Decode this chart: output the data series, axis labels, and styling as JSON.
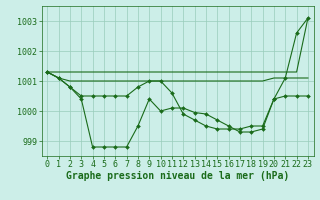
{
  "background_color": "#cceee8",
  "grid_color": "#99ccbb",
  "line_color": "#1a6b1a",
  "marker_color": "#1a6b1a",
  "xlabel": "Graphe pression niveau de la mer (hPa)",
  "xlabel_fontsize": 7,
  "tick_fontsize": 6,
  "ylim": [
    998.5,
    1003.5
  ],
  "xlim": [
    -0.5,
    23.5
  ],
  "yticks": [
    999,
    1000,
    1001,
    1002,
    1003
  ],
  "xticks": [
    0,
    1,
    2,
    3,
    4,
    5,
    6,
    7,
    8,
    9,
    10,
    11,
    12,
    13,
    14,
    15,
    16,
    17,
    18,
    19,
    20,
    21,
    22,
    23
  ],
  "series_straight": [
    1001.3,
    1001.3,
    1001.3,
    1001.3,
    1001.3,
    1001.3,
    1001.3,
    1001.3,
    1001.3,
    1001.3,
    1001.3,
    1001.3,
    1001.3,
    1001.3,
    1001.3,
    1001.3,
    1001.3,
    1001.3,
    1001.3,
    1001.3,
    1001.3,
    1001.3,
    1001.3,
    1003.1
  ],
  "series_flat": [
    1001.3,
    1001.1,
    1001.0,
    1001.0,
    1001.0,
    1001.0,
    1001.0,
    1001.0,
    1001.0,
    1001.0,
    1001.0,
    1001.0,
    1001.0,
    1001.0,
    1001.0,
    1001.0,
    1001.0,
    1001.0,
    1001.0,
    1001.0,
    1001.1,
    1001.1,
    1001.1,
    1001.1
  ],
  "series_mid": {
    "x": [
      0,
      1,
      2,
      3,
      4,
      5,
      6,
      7,
      8,
      9,
      10,
      11,
      12,
      13,
      14,
      15,
      16,
      17,
      18,
      19,
      20,
      21,
      22,
      23
    ],
    "y": [
      1001.3,
      1001.1,
      1000.8,
      1000.5,
      1000.5,
      1000.5,
      1000.5,
      1000.5,
      1000.8,
      1001.0,
      1001.0,
      1000.6,
      999.9,
      999.7,
      999.5,
      999.4,
      999.4,
      999.4,
      999.5,
      999.5,
      1000.4,
      1000.5,
      1000.5,
      1000.5
    ]
  },
  "series_main": {
    "x": [
      0,
      1,
      2,
      3,
      4,
      5,
      6,
      7,
      8,
      9,
      10,
      11,
      12,
      13,
      14,
      15,
      16,
      17,
      18,
      19,
      20,
      21,
      22,
      23
    ],
    "y": [
      1001.3,
      1001.1,
      1000.8,
      1000.4,
      998.8,
      998.8,
      998.8,
      998.8,
      999.5,
      1000.4,
      1000.0,
      1000.1,
      1000.1,
      999.95,
      999.9,
      999.7,
      999.5,
      999.3,
      999.3,
      999.4,
      1000.4,
      1001.1,
      1002.6,
      1003.1
    ]
  }
}
